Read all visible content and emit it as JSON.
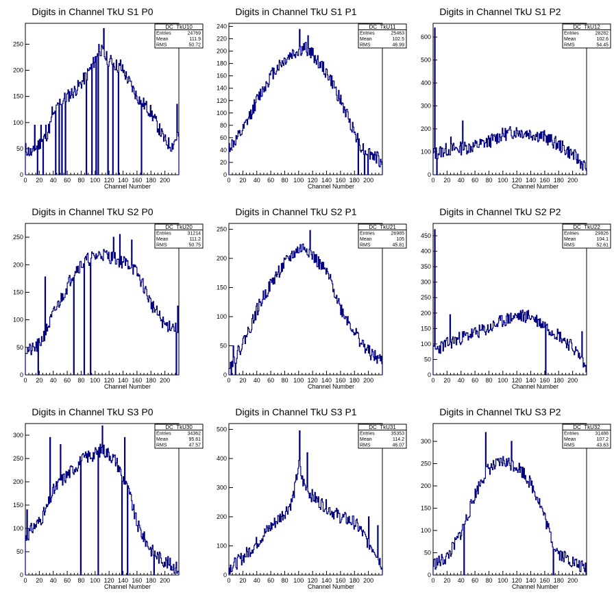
{
  "chart_data": [
    {
      "type": "histogram",
      "title": "Digits in Channel TkU S1 P0",
      "xlabel": "Channel Number",
      "xlim": [
        0,
        220
      ],
      "ylim": [
        0,
        290
      ],
      "xticks": [
        0,
        20,
        40,
        60,
        80,
        100,
        120,
        140,
        160,
        180,
        200
      ],
      "yticks": [
        0,
        50,
        100,
        150,
        200,
        250
      ],
      "stats": {
        "name": "DC_TkU10",
        "entries": "24769",
        "mean": "111.9",
        "rms": "50.72"
      },
      "profile": [
        [
          0,
          50
        ],
        [
          10,
          40
        ],
        [
          20,
          60
        ],
        [
          30,
          75
        ],
        [
          40,
          110
        ],
        [
          50,
          140
        ],
        [
          60,
          150
        ],
        [
          70,
          160
        ],
        [
          80,
          175
        ],
        [
          90,
          195
        ],
        [
          100,
          220
        ],
        [
          105,
          245
        ],
        [
          115,
          225
        ],
        [
          125,
          215
        ],
        [
          140,
          200
        ],
        [
          160,
          150
        ],
        [
          180,
          120
        ],
        [
          200,
          65
        ],
        [
          210,
          55
        ],
        [
          218,
          75
        ]
      ],
      "dips": [
        [
          17,
          0
        ],
        [
          25,
          0
        ],
        [
          43,
          0
        ],
        [
          48,
          0
        ],
        [
          52,
          0
        ],
        [
          57,
          0
        ],
        [
          87,
          0
        ],
        [
          95,
          0
        ],
        [
          101,
          0
        ],
        [
          104,
          0
        ],
        [
          118,
          0
        ],
        [
          125,
          0
        ],
        [
          133,
          0
        ],
        [
          166,
          0
        ]
      ],
      "spikes": [
        [
          13,
          95
        ],
        [
          22,
          95
        ],
        [
          29,
          95
        ],
        [
          38,
          130
        ],
        [
          112,
          280
        ],
        [
          136,
          220
        ],
        [
          217,
          135
        ]
      ],
      "seed": 11
    },
    {
      "type": "histogram",
      "title": "Digits in Channel TkU S1 P1",
      "xlabel": "Channel Number",
      "xlim": [
        0,
        220
      ],
      "ylim": [
        0,
        245
      ],
      "xticks": [
        0,
        20,
        40,
        60,
        80,
        100,
        120,
        140,
        160,
        180,
        200
      ],
      "yticks": [
        0,
        20,
        40,
        60,
        80,
        100,
        120,
        140,
        160,
        180,
        200,
        220,
        240
      ],
      "stats": {
        "name": "DC_TkU11",
        "entries": "25463",
        "mean": "102.5",
        "rms": "46.99"
      },
      "profile": [
        [
          0,
          45
        ],
        [
          10,
          55
        ],
        [
          20,
          70
        ],
        [
          30,
          95
        ],
        [
          40,
          120
        ],
        [
          50,
          140
        ],
        [
          60,
          160
        ],
        [
          70,
          175
        ],
        [
          80,
          185
        ],
        [
          90,
          195
        ],
        [
          100,
          200
        ],
        [
          110,
          205
        ],
        [
          120,
          195
        ],
        [
          130,
          180
        ],
        [
          140,
          165
        ],
        [
          150,
          145
        ],
        [
          160,
          120
        ],
        [
          170,
          95
        ],
        [
          180,
          70
        ],
        [
          190,
          45
        ],
        [
          200,
          35
        ],
        [
          210,
          30
        ],
        [
          218,
          20
        ]
      ],
      "dips": [
        [
          185,
          0
        ],
        [
          194,
          0
        ],
        [
          199,
          0
        ]
      ],
      "spikes": [
        [
          101,
          235
        ],
        [
          113,
          225
        ]
      ],
      "seed": 12
    },
    {
      "type": "histogram",
      "title": "Digits in Channel TkU S1 P2",
      "xlabel": "Channel Number",
      "xlim": [
        0,
        220
      ],
      "ylim": [
        0,
        660
      ],
      "xticks": [
        0,
        20,
        40,
        60,
        80,
        100,
        120,
        140,
        160,
        180,
        200
      ],
      "yticks": [
        0,
        100,
        200,
        300,
        400,
        500,
        600
      ],
      "stats": {
        "name": "DC_TkU12",
        "entries": "28282",
        "mean": "102.6",
        "rms": "54.45"
      },
      "profile": [
        [
          0,
          90
        ],
        [
          10,
          100
        ],
        [
          20,
          110
        ],
        [
          40,
          115
        ],
        [
          60,
          125
        ],
        [
          80,
          145
        ],
        [
          100,
          175
        ],
        [
          120,
          190
        ],
        [
          140,
          180
        ],
        [
          160,
          165
        ],
        [
          180,
          130
        ],
        [
          200,
          90
        ],
        [
          210,
          60
        ],
        [
          218,
          35
        ]
      ],
      "dips": [
        [
          5,
          0
        ]
      ],
      "spikes": [
        [
          2,
          640
        ],
        [
          25,
          165
        ],
        [
          42,
          235
        ]
      ],
      "seed": 13
    },
    {
      "type": "histogram",
      "title": "Digits in Channel TkU S2 P0",
      "xlabel": "Channel Number",
      "xlim": [
        0,
        220
      ],
      "ylim": [
        0,
        275
      ],
      "xticks": [
        0,
        20,
        40,
        60,
        80,
        100,
        120,
        140,
        160,
        180,
        200
      ],
      "yticks": [
        0,
        50,
        100,
        150,
        200,
        250
      ],
      "stats": {
        "name": "DC_TkU20",
        "entries": "31214",
        "mean": "111.2",
        "rms": "50.75"
      },
      "profile": [
        [
          0,
          45
        ],
        [
          10,
          45
        ],
        [
          20,
          55
        ],
        [
          30,
          80
        ],
        [
          40,
          110
        ],
        [
          50,
          135
        ],
        [
          60,
          160
        ],
        [
          70,
          190
        ],
        [
          80,
          200
        ],
        [
          90,
          210
        ],
        [
          100,
          215
        ],
        [
          110,
          220
        ],
        [
          120,
          215
        ],
        [
          130,
          210
        ],
        [
          140,
          205
        ],
        [
          150,
          200
        ],
        [
          160,
          185
        ],
        [
          170,
          160
        ],
        [
          180,
          130
        ],
        [
          190,
          110
        ],
        [
          200,
          90
        ],
        [
          210,
          90
        ],
        [
          218,
          80
        ]
      ],
      "dips": [
        [
          18,
          0
        ],
        [
          69,
          0
        ],
        [
          84,
          0
        ],
        [
          93,
          0
        ],
        [
          216,
          0
        ]
      ],
      "spikes": [
        [
          28,
          178
        ],
        [
          126,
          250
        ],
        [
          135,
          255
        ],
        [
          152,
          245
        ],
        [
          218,
          125
        ]
      ],
      "seed": 21
    },
    {
      "type": "histogram",
      "title": "Digits in Channel TkU S2 P1",
      "xlabel": "Channel Number",
      "xlim": [
        0,
        220
      ],
      "ylim": [
        0,
        260
      ],
      "xticks": [
        0,
        20,
        40,
        60,
        80,
        100,
        120,
        140,
        160,
        180,
        200
      ],
      "yticks": [
        0,
        50,
        100,
        150,
        200,
        250
      ],
      "stats": {
        "name": "DC_TkU21",
        "entries": "26985",
        "mean": "105",
        "rms": "45.81"
      },
      "profile": [
        [
          0,
          20
        ],
        [
          10,
          30
        ],
        [
          20,
          55
        ],
        [
          30,
          80
        ],
        [
          40,
          110
        ],
        [
          50,
          135
        ],
        [
          60,
          155
        ],
        [
          70,
          175
        ],
        [
          80,
          190
        ],
        [
          90,
          205
        ],
        [
          100,
          215
        ],
        [
          110,
          220
        ],
        [
          120,
          205
        ],
        [
          130,
          190
        ],
        [
          140,
          175
        ],
        [
          150,
          150
        ],
        [
          160,
          115
        ],
        [
          170,
          95
        ],
        [
          180,
          75
        ],
        [
          190,
          55
        ],
        [
          200,
          40
        ],
        [
          210,
          30
        ],
        [
          218,
          25
        ]
      ],
      "dips": [
        [
          3,
          0
        ],
        [
          9,
          0
        ]
      ],
      "spikes": [
        [
          6,
          50
        ],
        [
          116,
          248
        ]
      ],
      "seed": 22
    },
    {
      "type": "histogram",
      "title": "Digits in Channel TkU S2 P2",
      "xlabel": "Channel Number",
      "xlim": [
        0,
        220
      ],
      "ylim": [
        0,
        490
      ],
      "xticks": [
        0,
        20,
        40,
        60,
        80,
        100,
        120,
        140,
        160,
        180,
        200
      ],
      "yticks": [
        0,
        50,
        100,
        150,
        200,
        250,
        300,
        350,
        400,
        450
      ],
      "stats": {
        "name": "DC_TkU22",
        "entries": "29826",
        "mean": "104.1",
        "rms": "52.61"
      },
      "profile": [
        [
          0,
          75
        ],
        [
          10,
          90
        ],
        [
          20,
          100
        ],
        [
          40,
          120
        ],
        [
          60,
          135
        ],
        [
          80,
          150
        ],
        [
          100,
          175
        ],
        [
          120,
          190
        ],
        [
          140,
          190
        ],
        [
          160,
          160
        ],
        [
          180,
          130
        ],
        [
          200,
          90
        ],
        [
          210,
          60
        ],
        [
          218,
          25
        ]
      ],
      "dips": [
        [
          161,
          0
        ]
      ],
      "spikes": [
        [
          2,
          470
        ],
        [
          24,
          195
        ],
        [
          213,
          140
        ]
      ],
      "seed": 23
    },
    {
      "type": "histogram",
      "title": "Digits in Channel TkU S3 P0",
      "xlabel": "Channel Number",
      "xlim": [
        0,
        220
      ],
      "ylim": [
        0,
        325
      ],
      "xticks": [
        0,
        20,
        40,
        60,
        80,
        100,
        120,
        140,
        160,
        180,
        200
      ],
      "yticks": [
        0,
        50,
        100,
        150,
        200,
        250,
        300
      ],
      "stats": {
        "name": "DC_TkU30",
        "entries": "34362",
        "mean": "95.61",
        "rms": "47.57"
      },
      "profile": [
        [
          0,
          80
        ],
        [
          10,
          100
        ],
        [
          20,
          115
        ],
        [
          30,
          140
        ],
        [
          40,
          180
        ],
        [
          50,
          200
        ],
        [
          60,
          215
        ],
        [
          70,
          230
        ],
        [
          80,
          245
        ],
        [
          90,
          255
        ],
        [
          100,
          260
        ],
        [
          110,
          270
        ],
        [
          120,
          260
        ],
        [
          130,
          245
        ],
        [
          140,
          210
        ],
        [
          150,
          170
        ],
        [
          160,
          110
        ],
        [
          170,
          80
        ],
        [
          180,
          55
        ],
        [
          190,
          40
        ],
        [
          200,
          30
        ],
        [
          210,
          20
        ],
        [
          218,
          15
        ]
      ],
      "dips": [
        [
          79,
          0
        ],
        [
          104,
          0
        ],
        [
          138,
          0
        ],
        [
          146,
          0
        ],
        [
          184,
          0
        ]
      ],
      "spikes": [
        [
          2,
          140
        ],
        [
          35,
          295
        ],
        [
          50,
          280
        ],
        [
          110,
          320
        ],
        [
          142,
          295
        ]
      ],
      "seed": 31
    },
    {
      "type": "histogram",
      "title": "Digits in Channel TkU S3 P1",
      "xlabel": "Channel Number",
      "xlim": [
        0,
        220
      ],
      "ylim": [
        0,
        520
      ],
      "xticks": [
        0,
        20,
        40,
        60,
        80,
        100,
        120,
        140,
        160,
        180,
        200
      ],
      "yticks": [
        0,
        100,
        200,
        300,
        400,
        500
      ],
      "stats": {
        "name": "DC_TkU31",
        "entries": "35353",
        "mean": "114.2",
        "rms": "46.07"
      },
      "profile": [
        [
          0,
          25
        ],
        [
          10,
          40
        ],
        [
          20,
          60
        ],
        [
          30,
          85
        ],
        [
          40,
          110
        ],
        [
          50,
          140
        ],
        [
          60,
          165
        ],
        [
          70,
          190
        ],
        [
          80,
          215
        ],
        [
          90,
          250
        ],
        [
          95,
          300
        ],
        [
          100,
          380
        ],
        [
          105,
          330
        ],
        [
          110,
          300
        ],
        [
          120,
          270
        ],
        [
          130,
          250
        ],
        [
          140,
          235
        ],
        [
          150,
          215
        ],
        [
          160,
          200
        ],
        [
          170,
          190
        ],
        [
          180,
          180
        ],
        [
          190,
          150
        ],
        [
          200,
          110
        ],
        [
          210,
          85
        ],
        [
          218,
          40
        ]
      ],
      "dips": [],
      "spikes": [
        [
          101,
          495
        ],
        [
          112,
          420
        ],
        [
          200,
          200
        ],
        [
          213,
          170
        ]
      ],
      "seed": 32
    },
    {
      "type": "histogram",
      "title": "Digits in Channel TkU S3 P2",
      "xlabel": "Channel Number",
      "xlim": [
        0,
        220
      ],
      "ylim": [
        0,
        340
      ],
      "xticks": [
        0,
        20,
        40,
        60,
        80,
        100,
        120,
        140,
        160,
        180,
        200
      ],
      "yticks": [
        0,
        50,
        100,
        150,
        200,
        250,
        300
      ],
      "stats": {
        "name": "DC_TkU32",
        "entries": "31488",
        "mean": "107.2",
        "rms": "43.63"
      },
      "profile": [
        [
          0,
          25
        ],
        [
          10,
          30
        ],
        [
          20,
          40
        ],
        [
          30,
          65
        ],
        [
          40,
          95
        ],
        [
          50,
          135
        ],
        [
          60,
          180
        ],
        [
          70,
          215
        ],
        [
          80,
          240
        ],
        [
          90,
          245
        ],
        [
          100,
          255
        ],
        [
          110,
          250
        ],
        [
          120,
          245
        ],
        [
          130,
          230
        ],
        [
          140,
          205
        ],
        [
          150,
          175
        ],
        [
          160,
          130
        ],
        [
          170,
          80
        ],
        [
          180,
          50
        ],
        [
          190,
          40
        ],
        [
          200,
          30
        ],
        [
          210,
          20
        ],
        [
          218,
          15
        ]
      ],
      "dips": [
        [
          44,
          0
        ],
        [
          172,
          0
        ]
      ],
      "spikes": [
        [
          75,
          320
        ],
        [
          112,
          300
        ]
      ],
      "seed": 33
    }
  ]
}
